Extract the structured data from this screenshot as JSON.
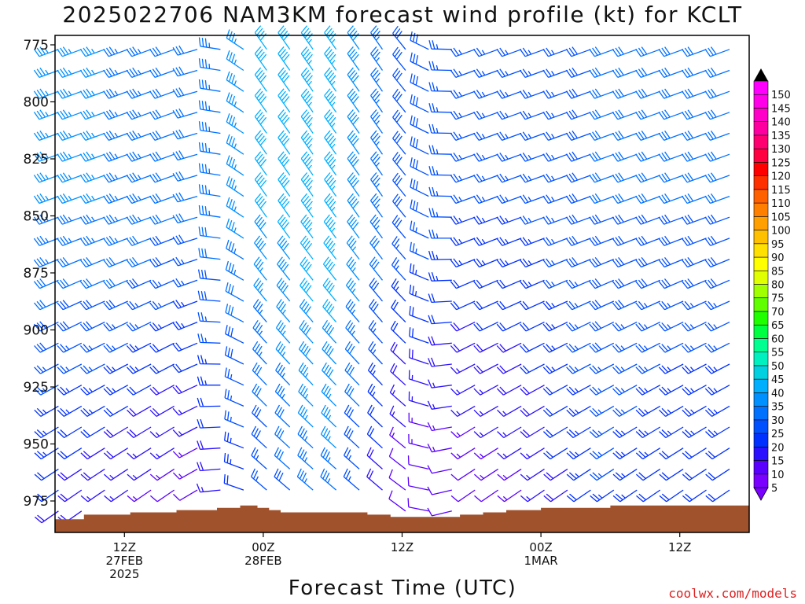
{
  "title": "2025022706 NAM3KM forecast wind profile (kt) for KCLT",
  "credit": "coolwx.com/models",
  "chart_data": {
    "type": "wind-barb time-height",
    "xlabel": "Forecast Time (UTC)",
    "ylabel": "",
    "yaxis_ticks": [
      775,
      800,
      825,
      850,
      875,
      900,
      925,
      950,
      975
    ],
    "ylim_hPa": [
      992,
      770
    ],
    "xaxis_ticks": [
      {
        "hour": 6,
        "lines": [
          "12Z",
          "27FEB",
          "2025"
        ]
      },
      {
        "hour": 18,
        "lines": [
          "00Z",
          "28FEB"
        ]
      },
      {
        "hour": 30,
        "lines": [
          "12Z"
        ]
      },
      {
        "hour": 42,
        "lines": [
          "00Z",
          "1MAR"
        ]
      },
      {
        "hour": 54,
        "lines": [
          "12Z"
        ]
      }
    ],
    "xlim_hours": [
      0,
      60
    ],
    "colorbar": {
      "levels": [
        5,
        10,
        15,
        20,
        25,
        30,
        35,
        40,
        45,
        50,
        55,
        60,
        65,
        70,
        75,
        80,
        85,
        90,
        95,
        100,
        105,
        110,
        115,
        120,
        125,
        130,
        135,
        140,
        145,
        150
      ],
      "colors": [
        "#7a00ff",
        "#5a00ff",
        "#2a10ff",
        "#0030ff",
        "#0050ff",
        "#0070ff",
        "#0090ff",
        "#00b0ff",
        "#00d0e0",
        "#00f0c0",
        "#00ff90",
        "#00ff40",
        "#20ff00",
        "#60ff00",
        "#a0ff00",
        "#e0ff00",
        "#ffff00",
        "#ffe000",
        "#ffc000",
        "#ffa000",
        "#ff8000",
        "#ff6000",
        "#ff3000",
        "#ff0000",
        "#ff0040",
        "#ff0070",
        "#ff00a0",
        "#ff00c8",
        "#ff00e8",
        "#ff00ff"
      ]
    },
    "wind_profile": [
      {
        "hour": 0,
        "speed_kt_850_to_775": 35,
        "speed_kt_975_to_875": 20,
        "dir": "W-SW"
      },
      {
        "hour": 6,
        "speed_kt_850_to_775": 35,
        "speed_kt_975_to_875": 15,
        "dir": "W-SW"
      },
      {
        "hour": 12,
        "speed_kt_850_to_775": 30,
        "speed_kt_975_to_875": 10,
        "dir": "W-SW"
      },
      {
        "hour": 18,
        "speed_kt_850_to_775": 40,
        "speed_kt_975_to_875": 25,
        "dir": "NW"
      },
      {
        "hour": 24,
        "speed_kt_850_to_775": 45,
        "speed_kt_975_to_875": 35,
        "dir": "NW"
      },
      {
        "hour": 30,
        "speed_kt_850_to_775": 30,
        "speed_kt_975_to_875": 10,
        "dir": "NW"
      },
      {
        "hour": 36,
        "speed_kt_850_to_775": 25,
        "speed_kt_975_to_875": 10,
        "dir": "W-SW"
      },
      {
        "hour": 42,
        "speed_kt_850_to_775": 25,
        "speed_kt_975_to_875": 15,
        "dir": "W-SW"
      },
      {
        "hour": 48,
        "speed_kt_850_to_775": 30,
        "speed_kt_975_to_875": 25,
        "dir": "W-SW"
      },
      {
        "hour": 54,
        "speed_kt_850_to_775": 30,
        "speed_kt_975_to_875": 20,
        "dir": "W-SW"
      },
      {
        "hour": 60,
        "speed_kt_850_to_775": 30,
        "speed_kt_975_to_875": 20,
        "dir": "W-SW"
      }
    ],
    "terrain_hPa": [
      {
        "hour": 0,
        "p": 983
      },
      {
        "hour": 2.5,
        "p": 981
      },
      {
        "hour": 6.5,
        "p": 980
      },
      {
        "hour": 10.5,
        "p": 979
      },
      {
        "hour": 14,
        "p": 978
      },
      {
        "hour": 16,
        "p": 977
      },
      {
        "hour": 17.5,
        "p": 978
      },
      {
        "hour": 18.5,
        "p": 979
      },
      {
        "hour": 19.5,
        "p": 980
      },
      {
        "hour": 27,
        "p": 981
      },
      {
        "hour": 29,
        "p": 982
      },
      {
        "hour": 35,
        "p": 981
      },
      {
        "hour": 37,
        "p": 980
      },
      {
        "hour": 39,
        "p": 979
      },
      {
        "hour": 42,
        "p": 978
      },
      {
        "hour": 48,
        "p": 977
      },
      {
        "hour": 60,
        "p": 976
      }
    ]
  }
}
